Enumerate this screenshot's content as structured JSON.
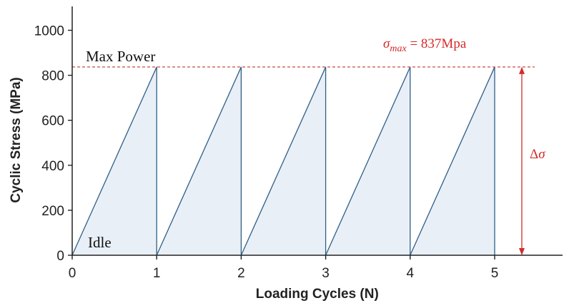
{
  "chart_data": {
    "type": "line",
    "xlabel": "Loading Cycles (N)",
    "ylabel": "Cyclic Stress (MPa)",
    "xlim": [
      0,
      5.8
    ],
    "ylim": [
      0,
      1100
    ],
    "x_ticks": [
      "0",
      "1",
      "2",
      "3",
      "4",
      "5"
    ],
    "y_ticks": [
      "0",
      "200",
      "400",
      "600",
      "800",
      "1000"
    ],
    "series": [
      {
        "x": [
          0,
          1,
          1,
          2,
          2,
          3,
          3,
          4,
          4,
          5,
          5
        ],
        "y": [
          0,
          837,
          0,
          837,
          0,
          837,
          0,
          837,
          0,
          837,
          0
        ]
      }
    ],
    "reference_line": {
      "y": 837,
      "label": "Max Power",
      "style": "dashed",
      "color": "#c0392b"
    },
    "annotations": {
      "idle": "Idle",
      "sigma_max": "σ_max = 837Mpa",
      "delta_sigma": "Δσ"
    },
    "colors": {
      "line": "#2f5f86",
      "fill": "#e9eff7",
      "annotation": "#d42a2a",
      "axis": "#222222"
    },
    "grid": false
  }
}
